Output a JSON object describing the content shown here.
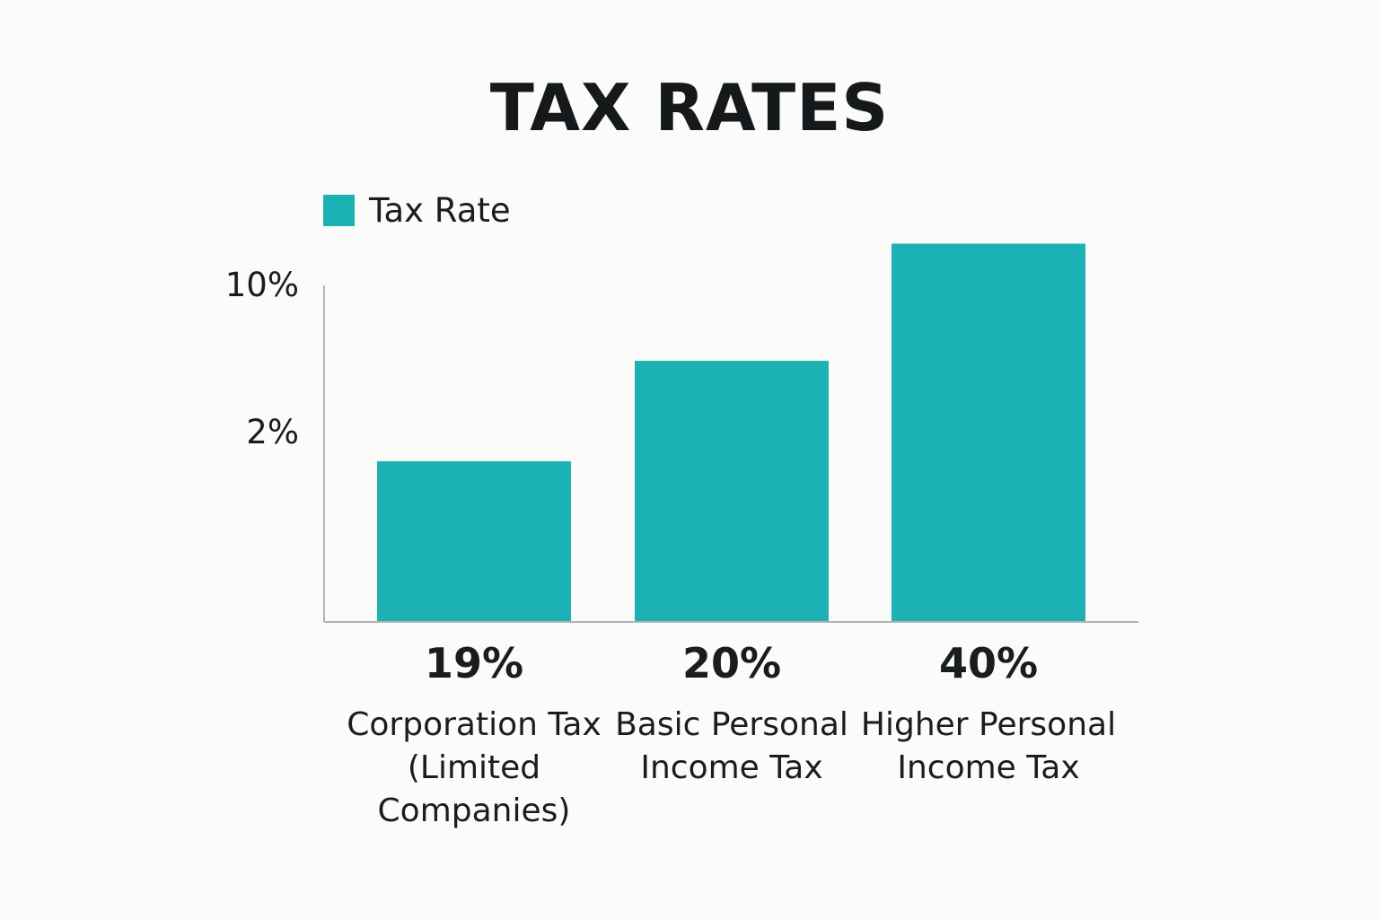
{
  "chart_data": {
    "type": "bar",
    "title": "TAX RATES",
    "categories": [
      "Corporation Tax (Limited Companies)",
      "Basic Personal Income Tax",
      "Higher Personal Income Tax"
    ],
    "category_lines": [
      [
        "Corporation Tax",
        "(Limited",
        "Companies)"
      ],
      [
        "Basic Personal",
        "Income Tax"
      ],
      [
        "Higher Personal",
        "Income Tax"
      ]
    ],
    "series": [
      {
        "name": "Tax Rate",
        "values": [
          19,
          20,
          40
        ],
        "data_labels": [
          "19%",
          "20%",
          "40%"
        ]
      }
    ],
    "bar_display_fraction": [
      0.48,
      0.78,
      1.13
    ],
    "y_ticks": [
      "10%",
      "2%"
    ],
    "y_tick_fraction": [
      1.0,
      0.56
    ],
    "xlabel": "",
    "ylabel": "",
    "grid": false,
    "legend_position": "top-left",
    "colors": {
      "bar": "#1cb1b4",
      "axis": "#b3b3b3",
      "background": "#fbfbf9"
    }
  }
}
